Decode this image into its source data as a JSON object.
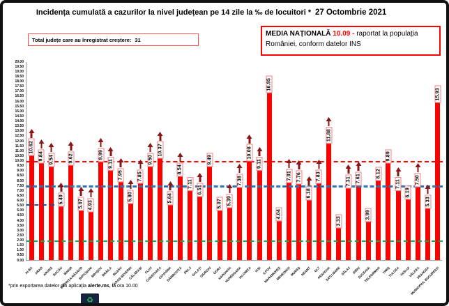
{
  "header": {
    "title": "Incidența cumulată a cazurilor la nivel județean pe 14 zile la ‰ de locuitori *",
    "date": "27 Octombrie 2021",
    "total_box": {
      "label": "Total județe care au înregistrat creștere:",
      "value": "31"
    },
    "media": {
      "label": "MEDIA NAȚIONALĂ",
      "value": "10.09 -",
      "text": "raportat la populația României, conform datelor INS"
    }
  },
  "footer": {
    "note_prefix": "*prin exportarea datelor din aplicația ",
    "note_bold": "alerte.ms",
    "note_suffix": ", la ora 10.00",
    "logo_glyph": "♻"
  },
  "chart_data": {
    "type": "bar",
    "title": "Incidența cumulată a cazurilor la nivel județean pe 14 zile la ‰ de locuitori *",
    "date": "27 Octombrie 2021",
    "xlabel": "",
    "ylabel": "",
    "ylim": [
      0,
      20
    ],
    "ytick_step": 0.5,
    "grid": false,
    "legend": "none",
    "national_average": 10.09,
    "bar_color": "#FF0000",
    "arrow_color": "#8B1515",
    "label_box_border": "#F08080",
    "reference_lines": [
      {
        "value": 10.0,
        "color": "#FF0000",
        "thickness": 2,
        "span": [
          0,
          1
        ]
      },
      {
        "value": 7.5,
        "color": "#2E75B6",
        "thickness": 3,
        "span": [
          0,
          1
        ]
      },
      {
        "value": 2.0,
        "color": "#00B050",
        "thickness": 2,
        "span": [
          0,
          1
        ]
      },
      {
        "value": 5.6,
        "color": "#1F4E9C",
        "thickness": 2,
        "span": [
          0,
          0.067
        ]
      }
    ],
    "categories": [
      "ALBA",
      "ARAD",
      "ARGEȘ",
      "BACĂU",
      "BIHOR",
      "BISTRIȚA-NĂSĂUD",
      "BOTOȘANI",
      "BRAȘOV",
      "BRĂILA",
      "BUZĂU",
      "CARAȘ-SEVERIN",
      "CĂLĂRAȘI",
      "CLUJ",
      "CONSTANȚA",
      "COVASNA",
      "DÂMBOVIȚA",
      "DOLJ",
      "GALAȚI",
      "GIURGIU",
      "GORJ",
      "HARGHITA",
      "HUNEDOARA",
      "IALOMIȚA",
      "IAȘI",
      "ILFOV",
      "MARAMUREȘ",
      "MEHEDINȚI",
      "MUREȘ",
      "NEAMȚ",
      "OLT",
      "PRAHOVA",
      "SATU MARE",
      "SĂLAJ",
      "SIBIU",
      "SUCEAVA",
      "TELEORMAN",
      "TIMIȘ",
      "TULCEA",
      "VASLUI",
      "VÂLCEA",
      "VRANCEA",
      "MUNICIPIUL BUCUREȘTI"
    ],
    "values": [
      10.62,
      9.84,
      9.54,
      5.49,
      9.62,
      5.07,
      4.93,
      9.99,
      9.11,
      7.95,
      5.8,
      7.85,
      9.5,
      10.37,
      5.64,
      8.54,
      7.11,
      6.51,
      9.49,
      5.07,
      5.39,
      7.38,
      10.08,
      9.11,
      16.95,
      4.04,
      7.91,
      7.76,
      6.18,
      7.83,
      11.88,
      3.33,
      7.31,
      7.61,
      3.99,
      8.12,
      9.89,
      7.11,
      6.19,
      7.5,
      5.33,
      15.93
    ],
    "increase": [
      true,
      true,
      true,
      true,
      true,
      true,
      true,
      true,
      true,
      true,
      true,
      true,
      true,
      true,
      true,
      true,
      false,
      true,
      false,
      false,
      true,
      true,
      true,
      true,
      false,
      false,
      true,
      true,
      true,
      true,
      true,
      false,
      true,
      true,
      false,
      false,
      false,
      true,
      false,
      true,
      true,
      false
    ]
  }
}
